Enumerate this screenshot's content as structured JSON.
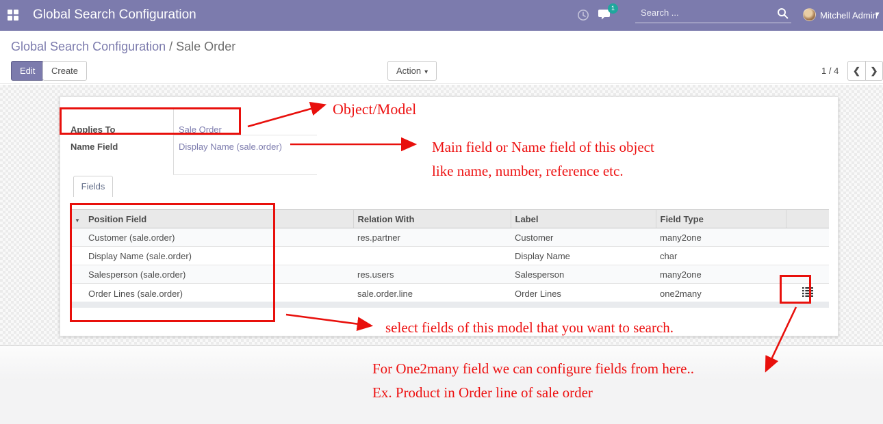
{
  "topbar": {
    "title": "Global Search Configuration",
    "search_placeholder": "Search ...",
    "user_name": "Mitchell Admin",
    "unread_count": "1"
  },
  "breadcrumb": {
    "parent": "Global Search Configuration",
    "separator": " / ",
    "current": "Sale Order"
  },
  "control_panel": {
    "edit": "Edit",
    "create": "Create",
    "action": "Action",
    "pager_value": "1 / 4"
  },
  "icons": {
    "dropdown_caret": "▾",
    "user_caret": "▾",
    "pager_prev": "❮",
    "pager_next": "❯",
    "sort_desc": "▼"
  },
  "form": {
    "fields": [
      {
        "label": "Applies To",
        "value": "Sale Order"
      },
      {
        "label": "Name Field",
        "value": "Display Name (sale.order)"
      }
    ],
    "tab_label": "Fields",
    "table": {
      "headers": [
        "Position Field",
        "Relation With",
        "Label",
        "Field Type"
      ],
      "rows": [
        {
          "position_field": "Customer (sale.order)",
          "relation_with": "res.partner",
          "label": "Customer",
          "field_type": "many2one",
          "configurable": false
        },
        {
          "position_field": "Display Name (sale.order)",
          "relation_with": "",
          "label": "Display Name",
          "field_type": "char",
          "configurable": false
        },
        {
          "position_field": "Salesperson (sale.order)",
          "relation_with": "res.users",
          "label": "Salesperson",
          "field_type": "many2one",
          "configurable": false
        },
        {
          "position_field": "Order Lines (sale.order)",
          "relation_with": "sale.order.line",
          "label": "Order Lines",
          "field_type": "one2many",
          "configurable": true
        }
      ]
    }
  },
  "annotations": {
    "object_model": "Object/Model",
    "name_field_note_line1": "Main field or Name field of this object",
    "name_field_note_line2": "like name, number, reference etc.",
    "fields_note": "select fields of this model that you want to search.",
    "one2many_note_line1": "For One2many field we can configure fields from here..",
    "one2many_note_line2": "Ex. Product in Order line of sale order"
  },
  "colors": {
    "accent": "#7c7bad",
    "badge": "#1fa79d",
    "annotation": "#ed1111"
  }
}
